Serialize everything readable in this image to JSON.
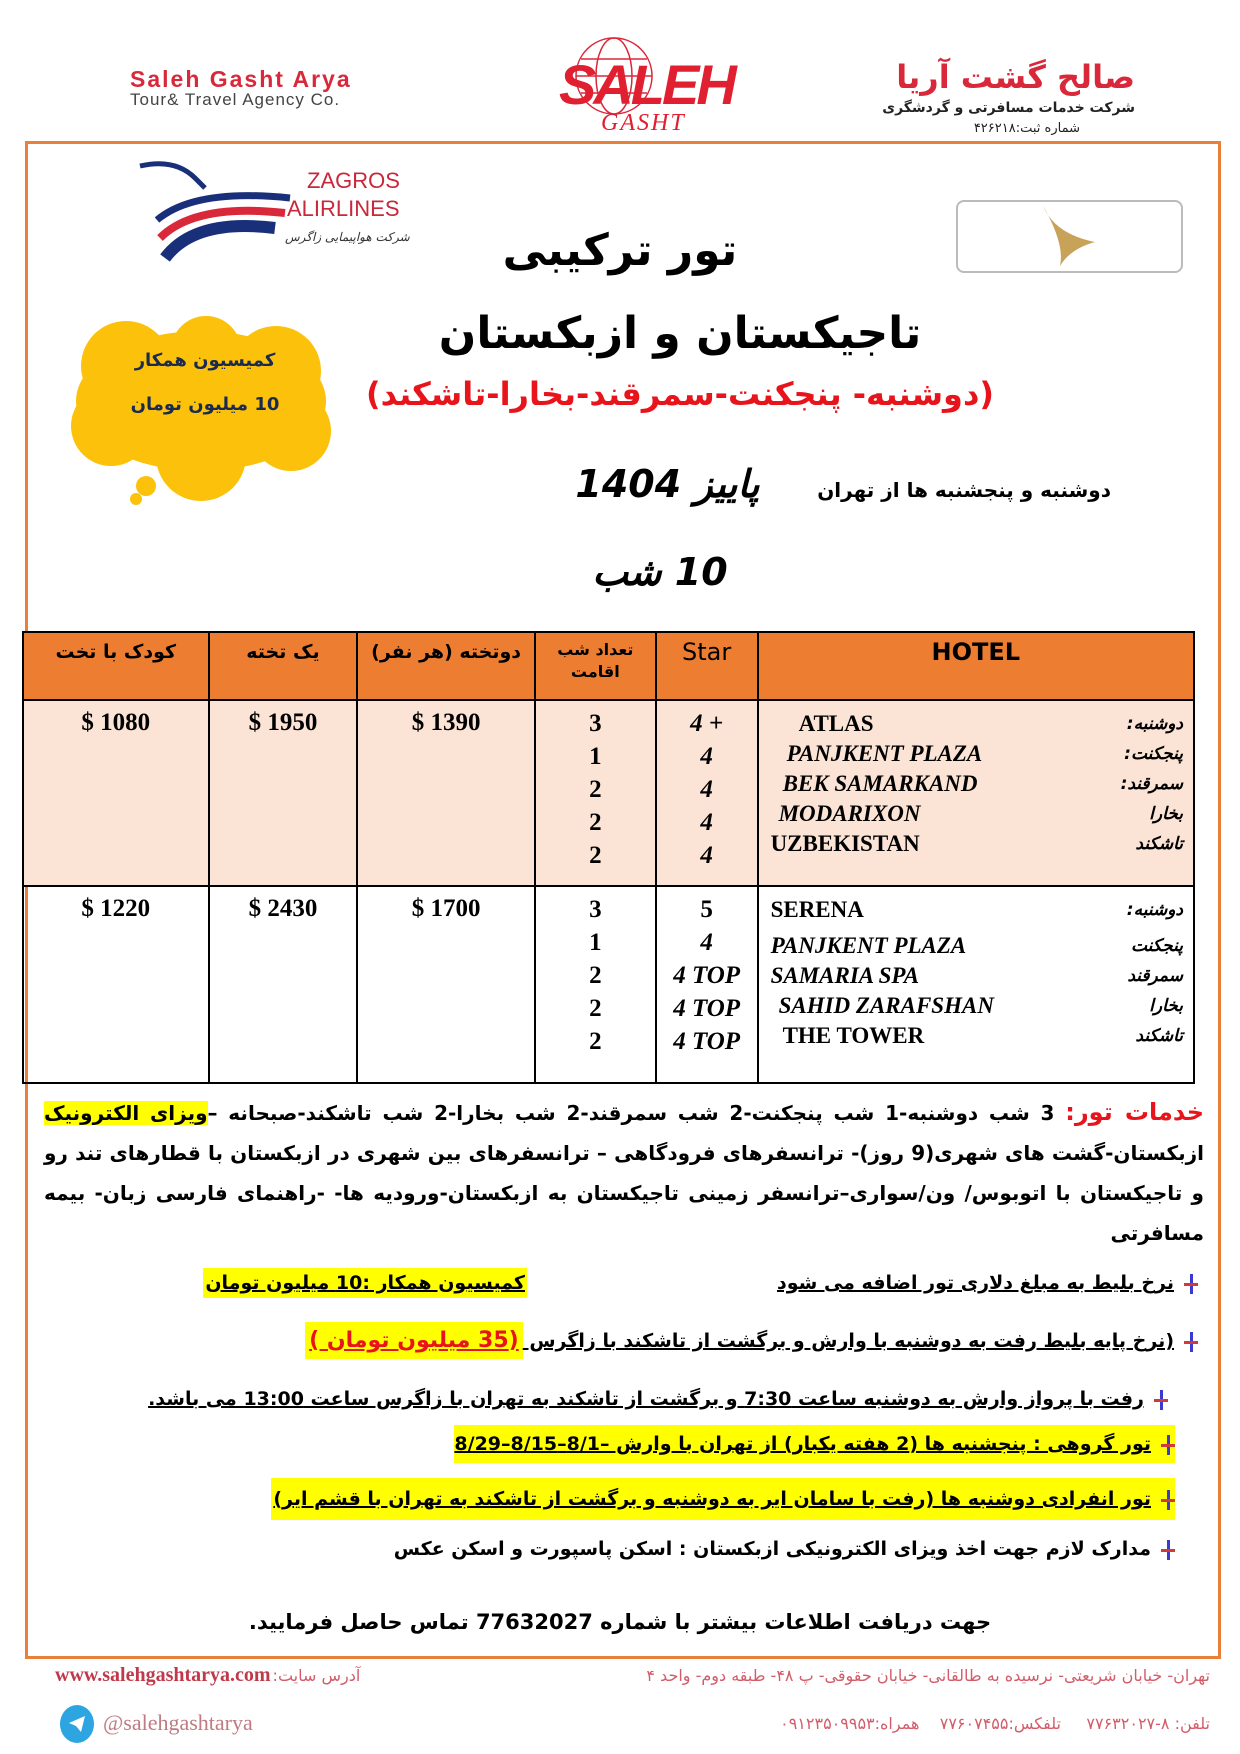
{
  "header": {
    "brand_en": "Saleh Gasht Arya",
    "brand_en_sub": "Tour& Travel Agency Co.",
    "logo_text_top": "SALEH",
    "logo_text_bottom": "GASHT",
    "brand_fa": "صالح گشت آریا",
    "brand_fa_sub": "شرکت خدمات مسافرتی و گردشگری",
    "registration": "شماره ثبت:۴۲۶۲۱۸"
  },
  "airline_logo": {
    "line1": "ZAGROS",
    "line2": "ALIRLINES",
    "fa": "شرکت هواپیمایی زاگرس"
  },
  "titles": {
    "tour_type": "تور ترکیبی",
    "countries": "تاجیکستان و ازبکستان",
    "route": "(دوشنبه- پنجکنت-سمرقند-بخارا-تاشکند)",
    "departure": "دوشنبه و پنجشنبه ها از تهران",
    "season": "پاییز 1404",
    "nights": "10 شب"
  },
  "commission_badge": {
    "line1": "کمیسیون همکار",
    "line2": "10 میلیون تومان"
  },
  "table": {
    "headers": {
      "child": "کودک با تخت",
      "single": "یک تخته",
      "double": "دوتخته (هر نفر)",
      "nights": "تعداد شب اقامت",
      "star": "Star",
      "hotel": "HOTEL"
    },
    "rows": [
      {
        "child": "$ 1080",
        "single": "$ 1950",
        "double": "$ 1390",
        "nights": [
          "3",
          "1",
          "2",
          "2",
          "2"
        ],
        "stars": [
          "4 +",
          "4",
          "4",
          "4",
          "4"
        ],
        "hotels": [
          {
            "city": "دوشنبه:",
            "name": "ATLAS"
          },
          {
            "city": "پنجکنت:",
            "name": "PANJKENT PLAZA"
          },
          {
            "city": "سمرقند:",
            "name": "BEK SAMARKAND"
          },
          {
            "city": "بخارا",
            "name": "MODARIXON"
          },
          {
            "city": "تاشکند",
            "name": "UZBEKISTAN"
          }
        ]
      },
      {
        "child": "$ 1220",
        "single": "$ 2430",
        "double": "$ 1700",
        "nights": [
          "3",
          "1",
          "2",
          "2",
          "2"
        ],
        "stars": [
          "5",
          "4",
          "4 TOP",
          "4 TOP",
          "4 TOP"
        ],
        "hotels": [
          {
            "city": "دوشنبه:",
            "name": "SERENA"
          },
          {
            "city": "پنجکنت",
            "name": "PANJKENT PLAZA"
          },
          {
            "city": "سمرقند",
            "name": "SAMARIA SPA"
          },
          {
            "city": "بخارا",
            "name": "SAHID ZARAFSHAN"
          },
          {
            "city": "تاشکند",
            "name": "THE TOWER"
          }
        ]
      }
    ]
  },
  "services": {
    "label": "خدمات تور:",
    "text_a": " 3 شب دوشنبه-1 شب پنجکنت-2 شب سمرقند-2 شب بخارا-2 شب تاشکند-صبحانه –",
    "highlight": "ویزای الکترونیک",
    "text_b": " ازبکستان-گشت های شهری(9 روز)- ترانسفرهای فرودگاهی – ترانسفرهای بین شهری در ازبکستان با قطارهای تند رو و تاجیکستان با اتوبوس/ ون/سواری–ترانسفر زمینی تاجیکستان به ازبکستان-ورودیه ها- -راهنمای فارسی زبان- بیمه مسافرتی"
  },
  "notes": {
    "n1_text": "نرخ بلیط به مبلغ دلاری تور اضافه می شود",
    "n1_highlight": "کمیسیون همکار :10 میلیون تومان",
    "n2_text": "(نرخ پایه بلیط رفت به دوشنبه با وارش و برگشت از تاشکند با زاگرس ",
    "n2_highlight": "(35 میلیون تومان )",
    "n3": "رفت با پرواز وارش به دوشنبه ساعت 7:30 و برگشت از تاشکند به تهران با زاگرس ساعت 13:00 می باشد.",
    "n4": "تور گروهی : پنجشنبه ها (2 هفته یکبار) از تهران با وارش –8/1–8/15–8/29",
    "n5": "تور انفرادی دوشنبه ها (رفت با سامان ایر به دوشنبه و برگشت از تاشکند به تهران با قشم ایر)",
    "n6": "مدارک لازم جهت اخذ ویزای الکترونیکی ازبکستان : اسکن پاسپورت و اسکن عکس"
  },
  "contact": "جهت دریافت اطلاعات بیشتر با شماره 77632027 تماس حاصل فرمایید.",
  "footer": {
    "website_label": "آدرس سایت:",
    "website": "www.salehgashtarya.com",
    "address": "تهران- خیابان شریعتی- نرسیده به طالقانی- خیابان حقوقی- پ ۴۸- طبقه دوم- واحد ۴",
    "telegram": "@salehgashtarya",
    "phones": "تلفن: ۸-۷۷۶۳۲۰۲۷     تلفکس:۷۷۶۰۷۴۵۵    همراه:۰۹۱۲۳۵۰۹۹۵۳"
  },
  "colors": {
    "accent": "#ed7d31",
    "frame": "#e8803a",
    "brand_red": "#d9283a",
    "highlight": "#ffff00",
    "row_tint": "#fbe4d5",
    "cloud": "#fcc10a"
  }
}
